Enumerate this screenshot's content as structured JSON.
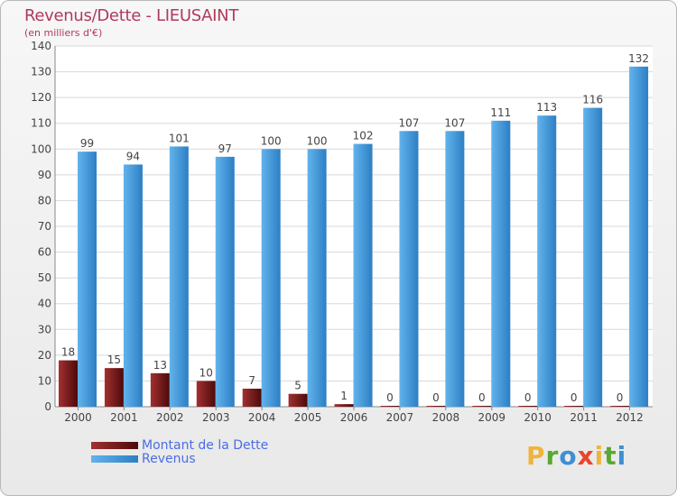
{
  "header": {
    "title": "Revenus/Dette - LIEUSAINT",
    "subtitle": "(en milliers d'€)"
  },
  "logo": {
    "letters": [
      "P",
      "r",
      "o",
      "x",
      "i",
      "t",
      "i"
    ],
    "colors": [
      "#f0b43c",
      "#5aa832",
      "#3d8fd1",
      "#e8452c",
      "#f0b43c",
      "#5aa832",
      "#3d8fd1"
    ]
  },
  "chart_data": {
    "type": "bar",
    "title": "Revenus/Dette - LIEUSAINT",
    "ylabel": "(en milliers d'€)",
    "xlabel": "",
    "categories": [
      "2000",
      "2001",
      "2002",
      "2003",
      "2004",
      "2005",
      "2006",
      "2007",
      "2008",
      "2009",
      "2010",
      "2011",
      "2012"
    ],
    "ylim": [
      0,
      140
    ],
    "yticks": [
      0,
      10,
      20,
      30,
      40,
      50,
      60,
      70,
      80,
      90,
      100,
      110,
      120,
      130,
      140
    ],
    "grid": true,
    "legend_position": "bottom-left",
    "series": [
      {
        "name": "Montant de la Dette",
        "color": "#6e1414",
        "values": [
          18,
          15,
          13,
          10,
          7,
          5,
          1,
          0,
          0,
          0,
          0,
          0,
          0
        ],
        "labels": [
          "18",
          "15",
          "13",
          "10",
          "7",
          "5",
          "1",
          "0",
          "0",
          "0",
          "0",
          "0",
          "0"
        ]
      },
      {
        "name": "Revenus",
        "color": "#3f97dd",
        "values": [
          99,
          94,
          101,
          97,
          100,
          100,
          102,
          107,
          107,
          111,
          113,
          116,
          132
        ],
        "labels": [
          "99",
          "94",
          "101",
          "97",
          "100",
          "100",
          "102",
          "107",
          "107",
          "111",
          "113",
          "116",
          "132"
        ]
      }
    ]
  }
}
